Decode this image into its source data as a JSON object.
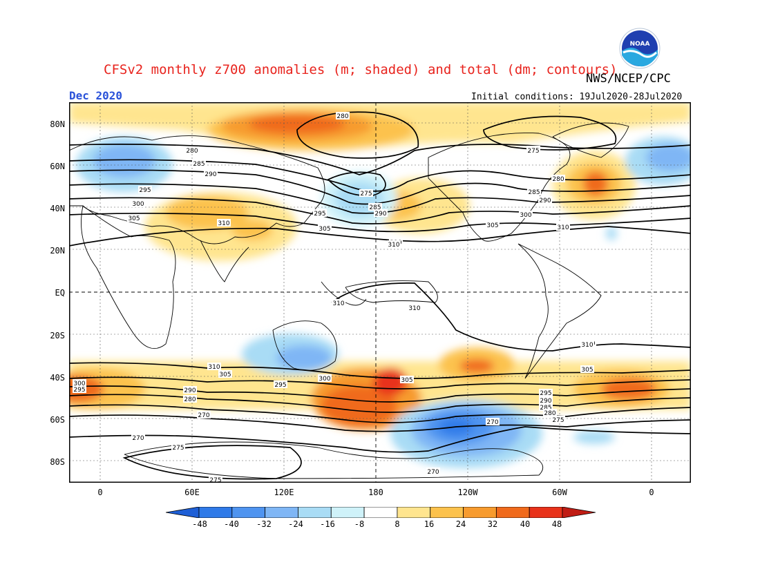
{
  "header": {
    "title": "CFSv2 monthly z700 anomalies (m; shaded) and total (dm; contours)",
    "agency": "NWS/NCEP/CPC",
    "period": "Dec 2020",
    "initial_conditions": "Initial conditions: 19Jul2020-28Jul2020",
    "logo_text": "NOAA"
  },
  "axes": {
    "lat_labels": [
      "80N",
      "60N",
      "40N",
      "20N",
      "EQ",
      "20S",
      "40S",
      "60S",
      "80S"
    ],
    "lon_labels": [
      "0",
      "60E",
      "120E",
      "180",
      "120W",
      "60W",
      "0"
    ]
  },
  "colorbar": {
    "labels": [
      "-48",
      "-40",
      "-32",
      "-24",
      "-16",
      "-8",
      "8",
      "16",
      "24",
      "32",
      "40",
      "48"
    ],
    "colors": [
      "#1e5fd6",
      "#2f7ae8",
      "#4f94f0",
      "#7fb6f5",
      "#a9dcf5",
      "#cff2f9",
      "#ffffff",
      "#ffe58f",
      "#fcc24d",
      "#f79b2e",
      "#f06a1c",
      "#e8321a",
      "#c01c14"
    ]
  },
  "contours": {
    "labels": [
      "280",
      "275",
      "280",
      "285",
      "290",
      "295",
      "300",
      "305",
      "310",
      "275",
      "285",
      "290",
      "295",
      "305",
      "310",
      "305",
      "300",
      "290",
      "285",
      "280",
      "275",
      "310",
      "310",
      "310",
      "310",
      "310",
      "305",
      "300",
      "295",
      "290",
      "280",
      "270",
      "270",
      "275",
      "275",
      "305",
      "295",
      "290",
      "285",
      "280",
      "275",
      "270",
      "270",
      "310",
      "300",
      "295",
      "310",
      "305"
    ]
  },
  "colors": {
    "title": "#e8231d",
    "period": "#2a52d9",
    "contour": "#000000",
    "coast": "#000000"
  }
}
